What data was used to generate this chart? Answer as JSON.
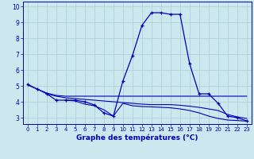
{
  "xlabel": "Graphe des températures (°C)",
  "background_color": "#cce8ee",
  "grid_color": "#aaccd4",
  "line_color": "#0000bb",
  "x": [
    0,
    1,
    2,
    3,
    4,
    5,
    6,
    7,
    8,
    9,
    10,
    11,
    12,
    13,
    14,
    15,
    16,
    17,
    18,
    19,
    20,
    21,
    22,
    23
  ],
  "main_y": [
    5.1,
    4.8,
    4.5,
    4.1,
    4.1,
    4.1,
    4.0,
    3.8,
    3.3,
    3.1,
    5.3,
    6.9,
    8.8,
    9.6,
    9.6,
    9.5,
    9.5,
    6.4,
    4.5,
    4.5,
    3.9,
    3.1,
    3.0,
    2.8
  ],
  "line2_x": [
    0,
    1,
    2,
    3,
    4,
    5,
    6,
    7,
    8,
    9,
    10,
    11,
    12,
    13,
    14,
    15,
    16,
    17,
    18,
    19,
    20,
    21,
    22,
    23
  ],
  "line2_y": [
    5.05,
    4.8,
    4.55,
    4.4,
    4.35,
    4.35,
    4.35,
    4.35,
    4.35,
    4.35,
    4.35,
    4.35,
    4.35,
    4.35,
    4.35,
    4.35,
    4.35,
    4.35,
    4.35,
    4.35,
    4.35,
    4.35,
    4.35,
    4.35
  ],
  "line3_x": [
    2,
    3,
    4,
    5,
    6,
    7,
    8,
    9,
    10,
    11,
    12,
    13,
    14,
    15,
    16,
    17,
    18,
    19,
    20,
    21,
    22,
    23
  ],
  "line3_y": [
    4.5,
    4.35,
    4.25,
    4.2,
    4.15,
    4.1,
    4.05,
    4.0,
    3.95,
    3.9,
    3.85,
    3.82,
    3.82,
    3.82,
    3.78,
    3.72,
    3.65,
    3.55,
    3.45,
    3.2,
    3.05,
    2.95
  ],
  "line4_x": [
    4,
    5,
    6,
    7,
    8,
    9,
    10,
    11,
    12,
    13,
    14,
    15,
    16,
    17,
    18,
    19,
    20,
    21,
    22,
    23
  ],
  "line4_y": [
    4.1,
    4.05,
    3.85,
    3.75,
    3.5,
    3.1,
    3.9,
    3.75,
    3.7,
    3.68,
    3.65,
    3.62,
    3.55,
    3.45,
    3.3,
    3.1,
    2.95,
    2.85,
    2.82,
    2.78
  ],
  "yticks": [
    3,
    4,
    5,
    6,
    7,
    8,
    9,
    10
  ],
  "ylim": [
    2.6,
    10.3
  ],
  "xlim": [
    -0.5,
    23.5
  ]
}
